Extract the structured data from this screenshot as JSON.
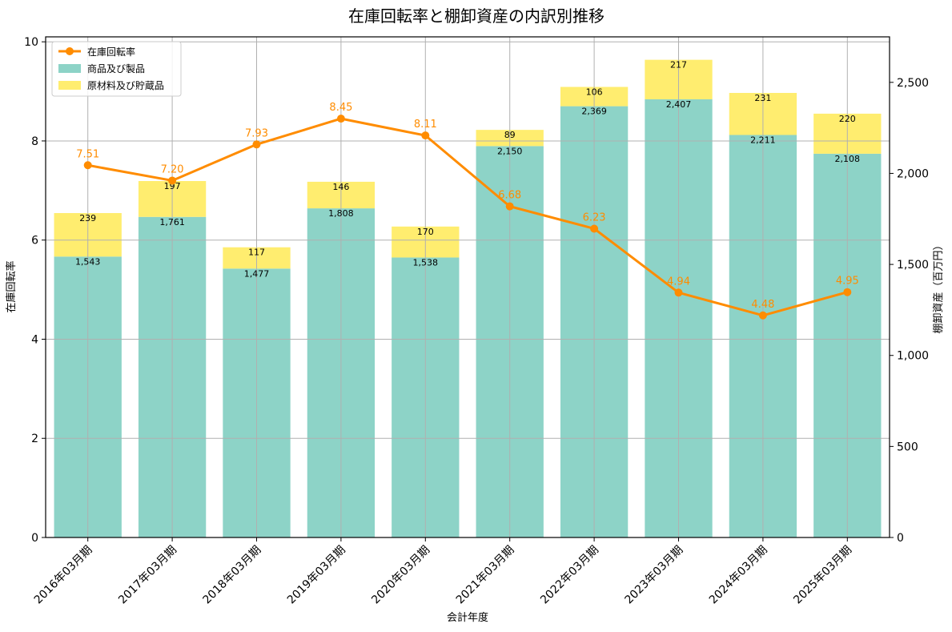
{
  "chart_data": {
    "type": "bar",
    "title": "在庫回転率と棚卸資産の内訳別推移",
    "xlabel": "会計年度",
    "ylabel_left": "在庫回転率",
    "ylabel_right": "棚卸資産（百万円）",
    "categories": [
      "2016年03月期",
      "2017年03月期",
      "2018年03月期",
      "2019年03月期",
      "2020年03月期",
      "2021年03月期",
      "2022年03月期",
      "2023年03月期",
      "2024年03月期",
      "2025年03月期"
    ],
    "series": [
      {
        "name": "商品及び製品",
        "kind": "bar",
        "axis": "right",
        "color": "#8dd3c7",
        "values": [
          1543,
          1761,
          1477,
          1808,
          1538,
          2150,
          2369,
          2407,
          2211,
          2108
        ],
        "labels": [
          "1,543",
          "1,761",
          "1,477",
          "1,808",
          "1,538",
          "2,150",
          "2,369",
          "2,407",
          "2,211",
          "2,108"
        ]
      },
      {
        "name": "原材料及び貯蔵品",
        "kind": "bar",
        "axis": "right",
        "color": "#ffed6f",
        "values": [
          239,
          197,
          117,
          146,
          170,
          89,
          106,
          217,
          231,
          220
        ],
        "labels": [
          "239",
          "197",
          "117",
          "146",
          "170",
          "89",
          "106",
          "217",
          "231",
          "220"
        ]
      },
      {
        "name": "在庫回転率",
        "kind": "line",
        "axis": "left",
        "color": "#ff8c00",
        "values": [
          7.51,
          7.2,
          7.93,
          8.45,
          8.11,
          6.68,
          6.23,
          4.94,
          4.48,
          4.95
        ],
        "labels": [
          "7.51",
          "7.20",
          "7.93",
          "8.45",
          "8.11",
          "6.68",
          "6.23",
          "4.94",
          "4.48",
          "4.95"
        ]
      }
    ],
    "ylim_left": [
      0,
      10.1
    ],
    "yticks_left": [
      "0",
      "2",
      "4",
      "6",
      "8",
      "10"
    ],
    "ylim_right": [
      0,
      2750
    ],
    "yticks_right": [
      "0",
      "500",
      "1,000",
      "1,500",
      "2,000",
      "2,500"
    ],
    "grid": true,
    "legend_position": "top-left"
  }
}
